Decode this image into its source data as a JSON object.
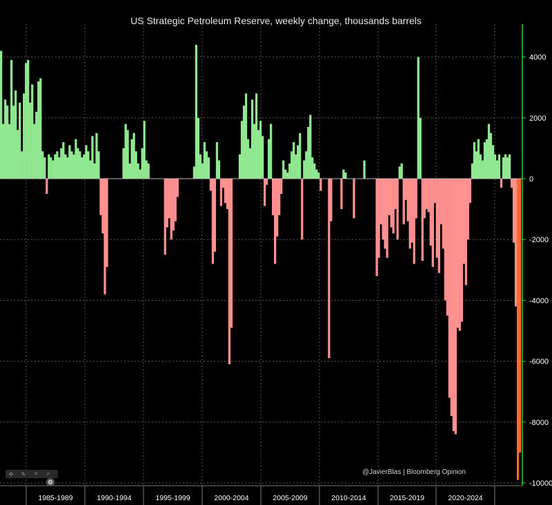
{
  "chart_data": {
    "type": "bar",
    "title": "US Strategic Petroleum Reserve, weekly change, thousands barrels",
    "xlabel": "",
    "ylabel": "",
    "ylim": [
      -10000,
      5000
    ],
    "y_ticks": [
      4000,
      2000,
      0,
      -2000,
      -4000,
      -6000,
      -8000,
      -10000
    ],
    "y_axis_side": "right",
    "grid": true,
    "x_tick_labels": [
      "1985-1989",
      "1990-1994",
      "1995-1999",
      "2000-2004",
      "2005-2009",
      "2010-2014",
      "2015-2019",
      "2020-2024"
    ],
    "colors": {
      "positive": "#90e890",
      "negative": "#ff9090",
      "latest": "#ff6a2a",
      "axis": "#2ecc40",
      "grid": "#5a5a5a"
    },
    "series": [
      {
        "values": [
          4200,
          1800,
          2600,
          2400,
          1800,
          3900,
          2400,
          2900,
          1600,
          2500,
          900,
          2800,
          3800,
          3900,
          2500,
          3100,
          1800,
          2200,
          3200,
          3300,
          900,
          700,
          -500,
          800,
          700,
          600,
          800,
          900,
          700,
          1000,
          1200,
          800,
          700,
          1100,
          900,
          800,
          1300,
          1000,
          900,
          700,
          800,
          1100,
          900,
          600,
          1400,
          500,
          1500,
          900,
          -1200,
          -1800,
          -3800,
          -2900,
          0,
          0,
          0,
          0,
          0,
          0,
          0,
          1000,
          1800,
          1600,
          500,
          1300,
          1500,
          900,
          500,
          300,
          1000,
          1900,
          600,
          500,
          0,
          0,
          0,
          0,
          0,
          0,
          0,
          -2500,
          -1600,
          -1300,
          -2000,
          -1700,
          -1400,
          -600,
          0,
          0,
          0,
          0,
          0,
          0,
          0,
          400,
          4400,
          2000,
          800,
          500,
          1200,
          900,
          700,
          -400,
          -2800,
          -2400,
          1200,
          600,
          -900,
          -300,
          -800,
          -1000,
          -6100,
          -4900,
          0,
          0,
          0,
          800,
          1900,
          2400,
          2800,
          1300,
          1000,
          2600,
          1800,
          2800,
          1600,
          1900,
          1400,
          -900,
          -200,
          1300,
          1800,
          -1200,
          -2800,
          -1900,
          -1200,
          -500,
          600,
          300,
          200,
          500,
          900,
          1200,
          800,
          1100,
          1500,
          -2000,
          600,
          900,
          1700,
          2100,
          700,
          500,
          300,
          200,
          -400,
          0,
          0,
          0,
          -5900,
          -1400,
          0,
          0,
          0,
          0,
          -1000,
          300,
          200,
          0,
          0,
          0,
          -1300,
          0,
          0,
          0,
          0,
          600,
          0,
          0,
          0,
          0,
          0,
          -3200,
          -2600,
          -1500,
          -2000,
          -2300,
          -2600,
          -1200,
          -1600,
          -1800,
          -1000,
          -2000,
          400,
          500,
          -1500,
          -700,
          -1400,
          -2300,
          -2100,
          -2800,
          -1300,
          4000,
          2000,
          -2700,
          -1300,
          -1000,
          -1100,
          -2200,
          -2900,
          -800,
          -2600,
          -3100,
          -1500,
          -2300,
          -4000,
          -4500,
          -7200,
          -7800,
          -8300,
          -8400,
          -4900,
          -5000,
          -4700,
          -2800,
          -3500,
          -2000,
          -800,
          500,
          1200,
          900,
          1300,
          800,
          600,
          1200,
          1300,
          1800,
          1500,
          1100,
          800,
          600,
          800,
          -300,
          700,
          800,
          700,
          800,
          -300,
          -2100,
          -4200,
          -9900,
          -9000
        ]
      }
    ]
  },
  "watermark": "@JavierBlas | Bloomberg Opinion",
  "toolbar_icons": [
    "move-icon",
    "pencil-icon",
    "crop-icon",
    "zoom-icon",
    "gear-icon"
  ]
}
